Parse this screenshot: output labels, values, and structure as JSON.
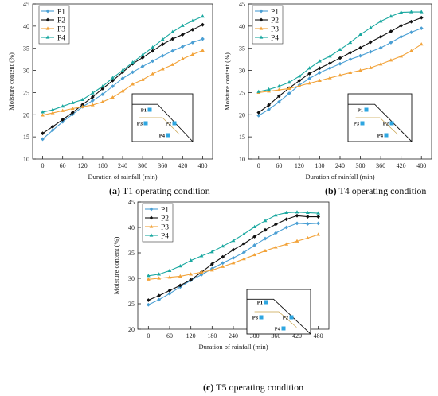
{
  "colors": {
    "P1": "#4a9fd4",
    "P2": "#111111",
    "P3": "#f2a33a",
    "P4": "#1aa8a0",
    "sensor": "#2ea6e0"
  },
  "chart_data": [
    {
      "type": "line",
      "caption_letter": "(a)",
      "caption_text": " T1 operating condition",
      "xlabel": "Duration of rainfall (min)",
      "ylabel": "Moisture content (%)",
      "xlim": [
        -30,
        510
      ],
      "ylim": [
        10,
        45
      ],
      "xticks": [
        0,
        60,
        120,
        180,
        240,
        300,
        360,
        420,
        480
      ],
      "yticks": [
        10,
        15,
        20,
        25,
        30,
        35,
        40,
        45
      ],
      "x": [
        0,
        30,
        60,
        90,
        120,
        150,
        180,
        210,
        240,
        270,
        300,
        330,
        360,
        390,
        420,
        450,
        480
      ],
      "series": [
        {
          "name": "P1",
          "values": [
            14.5,
            16.5,
            18.4,
            20.1,
            21.8,
            23.2,
            24.6,
            26.4,
            28.2,
            29.6,
            30.9,
            32.1,
            33.3,
            34.4,
            35.4,
            36.3,
            37.1
          ]
        },
        {
          "name": "P2",
          "values": [
            15.8,
            17.3,
            18.9,
            20.5,
            22.3,
            24.0,
            25.9,
            27.7,
            29.6,
            31.5,
            32.9,
            34.4,
            35.9,
            37.1,
            38.1,
            39.2,
            40.3
          ]
        },
        {
          "name": "P3",
          "values": [
            19.9,
            20.4,
            20.9,
            21.4,
            21.8,
            22.2,
            22.9,
            23.9,
            25.3,
            26.9,
            27.9,
            29.2,
            30.3,
            31.3,
            32.6,
            33.6,
            34.5
          ]
        },
        {
          "name": "P4",
          "values": [
            20.6,
            21.1,
            21.9,
            22.7,
            23.4,
            24.9,
            26.4,
            28.3,
            30.0,
            31.8,
            33.5,
            35.2,
            37.0,
            38.7,
            40.1,
            41.2,
            42.2
          ]
        }
      ],
      "inset_labels": [
        "P1",
        "P2",
        "P3",
        "P4"
      ]
    },
    {
      "type": "line",
      "caption_letter": "(b)",
      "caption_text": " T4 operating condition",
      "xlabel": "Duration of rainfall (min)",
      "ylabel": "Moisture content (%)",
      "xlim": [
        -30,
        510
      ],
      "ylim": [
        10,
        45
      ],
      "xticks": [
        0,
        60,
        120,
        180,
        240,
        300,
        360,
        420,
        480
      ],
      "yticks": [
        10,
        15,
        20,
        25,
        30,
        35,
        40,
        45
      ],
      "x": [
        0,
        30,
        60,
        90,
        120,
        150,
        180,
        210,
        240,
        270,
        300,
        330,
        360,
        390,
        420,
        450,
        480
      ],
      "series": [
        {
          "name": "P1",
          "values": [
            19.8,
            21.2,
            22.9,
            24.8,
            26.7,
            28.2,
            29.5,
            30.5,
            31.5,
            32.5,
            33.3,
            34.2,
            35.1,
            36.3,
            37.6,
            38.6,
            39.5
          ]
        },
        {
          "name": "P2",
          "values": [
            20.5,
            22.2,
            24.2,
            26.0,
            27.7,
            29.3,
            30.5,
            31.6,
            32.8,
            34.0,
            35.1,
            36.4,
            37.6,
            38.8,
            40.1,
            41.0,
            41.9
          ]
        },
        {
          "name": "P3",
          "values": [
            25.0,
            25.3,
            25.6,
            25.9,
            26.5,
            27.1,
            27.7,
            28.3,
            28.9,
            29.5,
            30.0,
            30.6,
            31.4,
            32.3,
            33.2,
            34.4,
            35.9
          ]
        },
        {
          "name": "P4",
          "values": [
            25.2,
            25.7,
            26.4,
            27.3,
            28.7,
            30.5,
            32.1,
            33.2,
            34.7,
            36.3,
            38.1,
            39.6,
            41.1,
            42.2,
            43.1,
            43.2,
            43.2
          ]
        }
      ],
      "inset_labels": [
        "P1",
        "P2",
        "P3",
        "P4"
      ]
    },
    {
      "type": "line",
      "caption_letter": "(c)",
      "caption_text": " T5 operating condition",
      "xlabel": "Duration of rainfall (min)",
      "ylabel": "Moisture content (%)",
      "xlim": [
        -30,
        510
      ],
      "ylim": [
        20,
        45
      ],
      "xticks": [
        0,
        60,
        120,
        180,
        240,
        300,
        360,
        420,
        480
      ],
      "yticks": [
        20,
        25,
        30,
        35,
        40,
        45
      ],
      "x": [
        0,
        30,
        60,
        90,
        120,
        150,
        180,
        210,
        240,
        270,
        300,
        330,
        360,
        390,
        420,
        450,
        480
      ],
      "series": [
        {
          "name": "P1",
          "values": [
            24.8,
            25.8,
            27.0,
            28.3,
            29.6,
            30.7,
            31.9,
            33.0,
            34.0,
            35.1,
            36.5,
            37.8,
            38.9,
            40.0,
            40.8,
            40.7,
            40.8
          ]
        },
        {
          "name": "P2",
          "values": [
            25.7,
            26.6,
            27.6,
            28.6,
            29.7,
            31.2,
            32.8,
            34.2,
            35.6,
            36.8,
            38.2,
            39.5,
            40.6,
            41.6,
            42.3,
            42.1,
            42.1
          ]
        },
        {
          "name": "P3",
          "values": [
            29.8,
            30.0,
            30.2,
            30.4,
            30.8,
            31.2,
            31.6,
            32.3,
            33.0,
            33.8,
            34.6,
            35.4,
            36.1,
            36.7,
            37.3,
            37.9,
            38.6
          ]
        },
        {
          "name": "P4",
          "values": [
            30.5,
            30.8,
            31.5,
            32.4,
            33.5,
            34.4,
            35.2,
            36.3,
            37.4,
            38.7,
            40.1,
            41.3,
            42.4,
            42.9,
            43.0,
            42.9,
            42.8
          ]
        }
      ],
      "inset_labels": [
        "P1",
        "P2",
        "P3",
        "P4"
      ]
    }
  ]
}
